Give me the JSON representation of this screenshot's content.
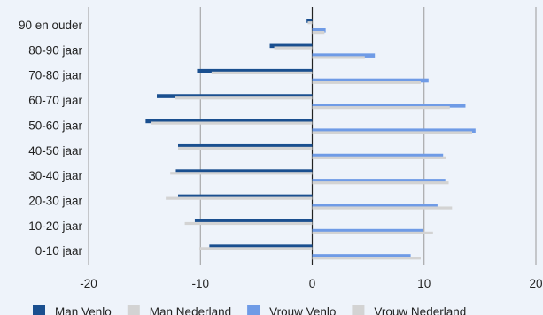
{
  "chart_data": {
    "type": "bar",
    "orientation": "horizontal",
    "categories": [
      "90 en ouder",
      "80-90 jaar",
      "70-80 jaar",
      "60-70 jaar",
      "50-60 jaar",
      "40-50 jaar",
      "30-40 jaar",
      "20-30 jaar",
      "10-20 jaar",
      "0-10 jaar"
    ],
    "series": [
      {
        "name": "Man Venlo",
        "color": "#1a4f8f",
        "values": [
          -0.5,
          -3.8,
          -10.3,
          -13.9,
          -14.9,
          -12.0,
          -12.2,
          -12.0,
          -10.5,
          -9.2
        ]
      },
      {
        "name": "Man Nederland",
        "color": "#d3d3d3",
        "values": [
          -0.4,
          -3.4,
          -9.0,
          -12.3,
          -14.4,
          -12.0,
          -12.7,
          -13.1,
          -11.4,
          -10.1
        ]
      },
      {
        "name": "Vrouw Venlo",
        "color": "#6f9be6",
        "values": [
          1.2,
          5.6,
          10.4,
          13.7,
          14.6,
          11.7,
          11.9,
          11.2,
          9.9,
          8.8
        ]
      },
      {
        "name": "Vrouw Nederland",
        "color": "#d3d3d3",
        "values": [
          1.1,
          4.7,
          9.7,
          12.3,
          14.3,
          12.0,
          12.2,
          12.5,
          10.8,
          9.7
        ]
      }
    ],
    "x_ticks": [
      "-20",
      "-10",
      "0",
      "10",
      "20"
    ],
    "xlim": [
      -20,
      20
    ],
    "grid": true,
    "legend_position": "bottom"
  }
}
